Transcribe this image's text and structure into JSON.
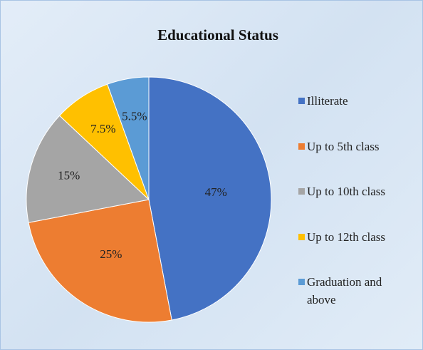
{
  "chart_data": {
    "type": "pie",
    "title": "Educational Status",
    "categories": [
      "Illiterate",
      "Up to 5th class",
      "Up to 10th class",
      "Up to 12th class",
      "Graduation and above"
    ],
    "values": [
      47,
      25,
      15,
      7.5,
      5.5
    ],
    "value_labels": [
      "47%",
      "25%",
      "15%",
      "7.5%",
      "5.5%"
    ],
    "colors": [
      "#4472c4",
      "#ed7d31",
      "#a5a5a5",
      "#ffc000",
      "#5b9bd5"
    ],
    "legend": "right"
  }
}
